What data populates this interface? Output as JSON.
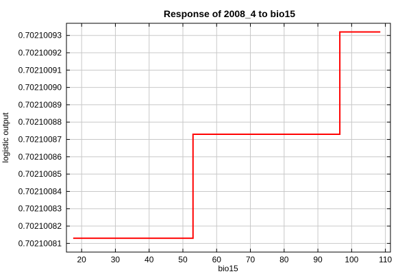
{
  "chart_data": {
    "type": "line",
    "title": "Response of 2008_4 to bio15",
    "xlabel": "bio15",
    "ylabel": "logistic output",
    "xlim": [
      15.5,
      111.5
    ],
    "ylim": [
      0.702100805,
      0.702100937
    ],
    "xticks": [
      20,
      30,
      40,
      50,
      60,
      70,
      80,
      90,
      100,
      110
    ],
    "xtick_labels": [
      "20",
      "30",
      "40",
      "50",
      "60",
      "70",
      "80",
      "90",
      "100",
      "110"
    ],
    "yticks": [
      0.70210081,
      0.70210082,
      0.70210083,
      0.70210084,
      0.70210085,
      0.70210086,
      0.70210087,
      0.70210088,
      0.70210089,
      0.7021009,
      0.70210091,
      0.70210092,
      0.70210093
    ],
    "ytick_labels": [
      "0.70210081",
      "0.70210082",
      "0.70210083",
      "0.70210084",
      "0.70210085",
      "0.70210086",
      "0.70210087",
      "0.70210088",
      "0.70210089",
      "0.70210090",
      "0.70210091",
      "0.70210092",
      "0.70210093"
    ],
    "grid": true,
    "series": [
      {
        "color": "#ff0000",
        "step": true,
        "x": [
          17.5,
          53,
          53,
          96.5,
          96.5,
          108.5
        ],
        "y": [
          0.702100813,
          0.702100813,
          0.702100873,
          0.702100873,
          0.702100932,
          0.702100932
        ]
      }
    ]
  }
}
